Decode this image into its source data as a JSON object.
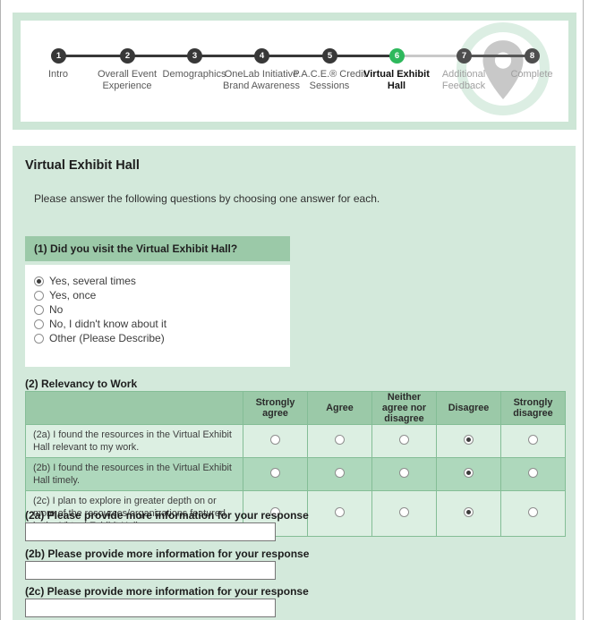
{
  "stepper": {
    "steps": [
      {
        "num": "1",
        "label": "Intro",
        "state": "done"
      },
      {
        "num": "2",
        "label": "Overall Event Experience",
        "state": "done"
      },
      {
        "num": "3",
        "label": "Demographics",
        "state": "done"
      },
      {
        "num": "4",
        "label": "OneLab Initiative Brand Awareness",
        "state": "done"
      },
      {
        "num": "5",
        "label": "P.A.C.E.® Credit Sessions",
        "state": "done"
      },
      {
        "num": "6",
        "label": "Virtual Exhibit Hall",
        "state": "current"
      },
      {
        "num": "7",
        "label": "Additional Feedback",
        "state": "future"
      },
      {
        "num": "8",
        "label": "Complete",
        "state": "future"
      }
    ],
    "decor_icon": "location-pin-icon"
  },
  "page": {
    "title": "Virtual Exhibit Hall",
    "instructions": "Please answer the following questions by choosing one answer for each."
  },
  "question1": {
    "header": "(1) Did you visit the Virtual Exhibit Hall?",
    "options": [
      {
        "label": "Yes, several times",
        "selected": true
      },
      {
        "label": "Yes, once",
        "selected": false
      },
      {
        "label": "No",
        "selected": false
      },
      {
        "label": "No, I didn't know about it",
        "selected": false
      },
      {
        "label": "Other (Please Describe)",
        "selected": false
      }
    ]
  },
  "question2": {
    "title": "(2) Relevancy to Work",
    "columns": [
      "Strongly agree",
      "Agree",
      "Neither agree nor disagree",
      "Disagree",
      "Strongly disagree"
    ],
    "rows": [
      {
        "label": "(2a) I found the resources in the Virtual Exhibit Hall relevant to my work.",
        "selected": "Disagree"
      },
      {
        "label": "(2b) I found the resources in the Virtual Exhibit Hall timely.",
        "selected": "Disagree"
      },
      {
        "label": "(2c) I plan to explore in greater depth on or more of the resources/organizations featured in the Virtual Exhibit Hall.",
        "selected": "Disagree"
      }
    ]
  },
  "followups": [
    {
      "label": "(2a) Please provide more information for your response",
      "value": ""
    },
    {
      "label": "(2b) Please provide more information for your response",
      "value": ""
    },
    {
      "label": "(2c) Please provide more information for your response",
      "value": ""
    }
  ],
  "colors": {
    "current_step_green": "#2eb85c",
    "section_header_green": "#9bc9a8",
    "panel_green": "#d3e9db",
    "matrix_row_light": "#dcefe2",
    "matrix_row_dark": "#aed8bc",
    "matrix_border_green": "#84bd96",
    "card_border_green": "#cde6d6",
    "done_step_dark": "#383838",
    "future_step_gray": "#4e4e4e",
    "pin_gray": "#c8c8c8"
  }
}
